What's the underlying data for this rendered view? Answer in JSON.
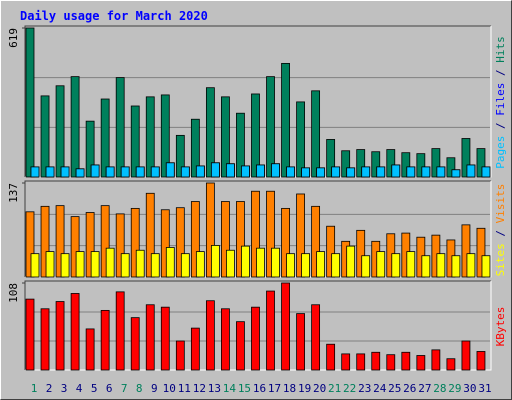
{
  "chart_data": [
    {
      "type": "bar",
      "title": "Daily usage for March 2020",
      "ylim": [
        0,
        619
      ],
      "yticks": [
        619
      ],
      "legend_separator": " / ",
      "series": [
        {
          "name": "Hits",
          "color": "#00805C",
          "values": [
            619,
            337,
            379,
            417,
            232,
            324,
            413,
            295,
            333,
            341,
            173,
            240,
            371,
            333,
            265,
            345,
            417,
            472,
            312,
            358,
            156,
            109,
            114,
            105,
            114,
            101,
            97,
            118,
            80,
            160,
            118
          ]
        },
        {
          "name": "Files",
          "color": "#0000FF",
          "values": [
            42,
            42,
            42,
            34,
            50,
            42,
            42,
            42,
            42,
            59,
            42,
            46,
            59,
            55,
            46,
            50,
            55,
            42,
            38,
            38,
            42,
            38,
            42,
            42,
            50,
            42,
            42,
            42,
            30,
            50,
            42
          ]
        },
        {
          "name": "Pages",
          "color": "#00C0FF",
          "values": [
            42,
            42,
            42,
            34,
            50,
            42,
            42,
            42,
            42,
            59,
            42,
            46,
            59,
            55,
            46,
            50,
            55,
            42,
            38,
            38,
            42,
            38,
            42,
            42,
            50,
            42,
            42,
            42,
            30,
            50,
            42
          ]
        }
      ]
    },
    {
      "type": "bar",
      "ylim": [
        0,
        137
      ],
      "yticks": [
        137
      ],
      "legend_separator": " / ",
      "series": [
        {
          "name": "Visits",
          "color": "#FF8000",
          "values": [
            95,
            103,
            104,
            88,
            94,
            104,
            92,
            100,
            122,
            98,
            101,
            110,
            137,
            110,
            110,
            125,
            125,
            100,
            121,
            103,
            74,
            52,
            68,
            52,
            63,
            64,
            58,
            61,
            54,
            76,
            71
          ]
        },
        {
          "name": "Sites",
          "color": "#FFFF00",
          "values": [
            34,
            37,
            34,
            37,
            37,
            42,
            34,
            39,
            34,
            43,
            34,
            37,
            46,
            39,
            45,
            42,
            42,
            34,
            34,
            37,
            34,
            45,
            31,
            37,
            34,
            37,
            31,
            34,
            31,
            34,
            31
          ]
        }
      ]
    },
    {
      "type": "bar",
      "ylim": [
        0,
        108
      ],
      "yticks": [
        108
      ],
      "categories": [
        "1",
        "2",
        "3",
        "4",
        "5",
        "6",
        "7",
        "8",
        "9",
        "10",
        "11",
        "12",
        "13",
        "14",
        "15",
        "16",
        "17",
        "18",
        "19",
        "20",
        "21",
        "22",
        "23",
        "24",
        "25",
        "26",
        "27",
        "28",
        "29",
        "30",
        "31"
      ],
      "category_colors": [
        "#00805C",
        "#000080",
        "#000080",
        "#000080",
        "#000080",
        "#000080",
        "#00805C",
        "#00805C",
        "#000080",
        "#000080",
        "#000080",
        "#000080",
        "#000080",
        "#00805C",
        "#00805C",
        "#000080",
        "#000080",
        "#000080",
        "#000080",
        "#000080",
        "#00805C",
        "#00805C",
        "#000080",
        "#000080",
        "#000080",
        "#000080",
        "#000080",
        "#00805C",
        "#00805C",
        "#000080",
        "#000080"
      ],
      "series": [
        {
          "name": "KBytes",
          "color": "#FF0000",
          "values": [
            88,
            76,
            85,
            95,
            51,
            74,
            97,
            65,
            81,
            78,
            36,
            52,
            86,
            76,
            60,
            78,
            98,
            108,
            70,
            81,
            32,
            20,
            20,
            22,
            19,
            22,
            18,
            25,
            14,
            36,
            23
          ]
        }
      ]
    }
  ]
}
